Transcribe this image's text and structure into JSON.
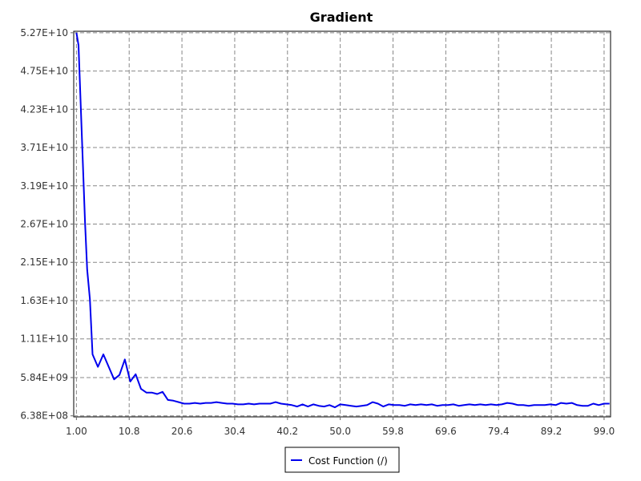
{
  "chart_data": {
    "type": "line",
    "title": "Gradient",
    "xlabel": "",
    "ylabel": "",
    "grid": true,
    "legend_position": "bottom-center",
    "xlim": [
      0.5,
      100.2
    ],
    "ylim": [
      500000000,
      52900000000
    ],
    "x_ticks": [
      1.0,
      10.8,
      20.6,
      30.4,
      40.2,
      50.0,
      59.8,
      69.6,
      79.4,
      89.2,
      99.0
    ],
    "x_tick_labels": [
      "1.00",
      "10.8",
      "20.6",
      "30.4",
      "40.2",
      "50.0",
      "59.8",
      "69.6",
      "79.4",
      "89.2",
      "99.0"
    ],
    "y_ticks": [
      638000000,
      5840000000,
      11100000000,
      16300000000,
      21500000000,
      26700000000,
      31900000000,
      37100000000,
      42300000000,
      47500000000,
      52700000000
    ],
    "y_tick_labels": [
      "6.38E+08",
      "5.84E+09",
      "1.11E+10",
      "1.63E+10",
      "2.15E+10",
      "2.67E+10",
      "3.19E+10",
      "3.71E+10",
      "4.23E+10",
      "4.75E+10",
      "5.27E+10"
    ],
    "series": [
      {
        "name": "Cost Function (/)",
        "color": "#0000ee",
        "x": [
          1,
          1.4,
          1.8,
          2.2,
          2.6,
          3,
          3.5,
          4,
          5,
          6,
          7,
          8,
          9,
          10,
          11,
          12,
          13,
          14,
          15,
          16,
          17,
          18,
          19,
          20,
          21,
          22,
          23,
          24,
          25,
          26,
          27,
          28,
          29,
          30,
          31,
          32,
          33,
          34,
          35,
          36,
          37,
          38,
          39,
          40,
          41,
          42,
          43,
          44,
          45,
          46,
          47,
          48,
          49,
          50,
          51,
          52,
          53,
          54,
          55,
          56,
          57,
          58,
          59,
          60,
          61,
          62,
          63,
          64,
          65,
          66,
          67,
          68,
          69,
          70,
          71,
          72,
          73,
          74,
          75,
          76,
          77,
          78,
          79,
          80,
          81,
          82,
          83,
          84,
          85,
          86,
          87,
          88,
          89,
          90,
          91,
          92,
          93,
          94,
          95,
          96,
          97,
          98,
          99,
          100
        ],
        "y": [
          52700000000,
          51000000000,
          43000000000,
          35000000000,
          27000000000,
          20500000000,
          16500000000,
          9000000000,
          7300000000,
          9000000000,
          7300000000,
          5600000000,
          6200000000,
          8300000000,
          5300000000,
          6300000000,
          4300000000,
          3800000000,
          3800000000,
          3600000000,
          3900000000,
          2800000000,
          2700000000,
          2500000000,
          2300000000,
          2300000000,
          2400000000,
          2300000000,
          2400000000,
          2400000000,
          2500000000,
          2400000000,
          2300000000,
          2300000000,
          2200000000,
          2200000000,
          2300000000,
          2200000000,
          2300000000,
          2300000000,
          2300000000,
          2500000000,
          2300000000,
          2200000000,
          2100000000,
          1900000000,
          2200000000,
          1900000000,
          2200000000,
          2000000000,
          1900000000,
          2100000000,
          1800000000,
          2200000000,
          2100000000,
          2000000000,
          1900000000,
          2000000000,
          2100000000,
          2500000000,
          2300000000,
          1900000000,
          2200000000,
          2100000000,
          2100000000,
          2000000000,
          2200000000,
          2100000000,
          2200000000,
          2100000000,
          2200000000,
          2000000000,
          2100000000,
          2100000000,
          2200000000,
          2000000000,
          2100000000,
          2200000000,
          2100000000,
          2200000000,
          2100000000,
          2200000000,
          2100000000,
          2200000000,
          2400000000,
          2300000000,
          2100000000,
          2100000000,
          2000000000,
          2100000000,
          2100000000,
          2100000000,
          2200000000,
          2100000000,
          2400000000,
          2300000000,
          2400000000,
          2100000000,
          2000000000,
          2000000000,
          2300000000,
          2100000000,
          2300000000,
          2300000000
        ]
      }
    ]
  }
}
